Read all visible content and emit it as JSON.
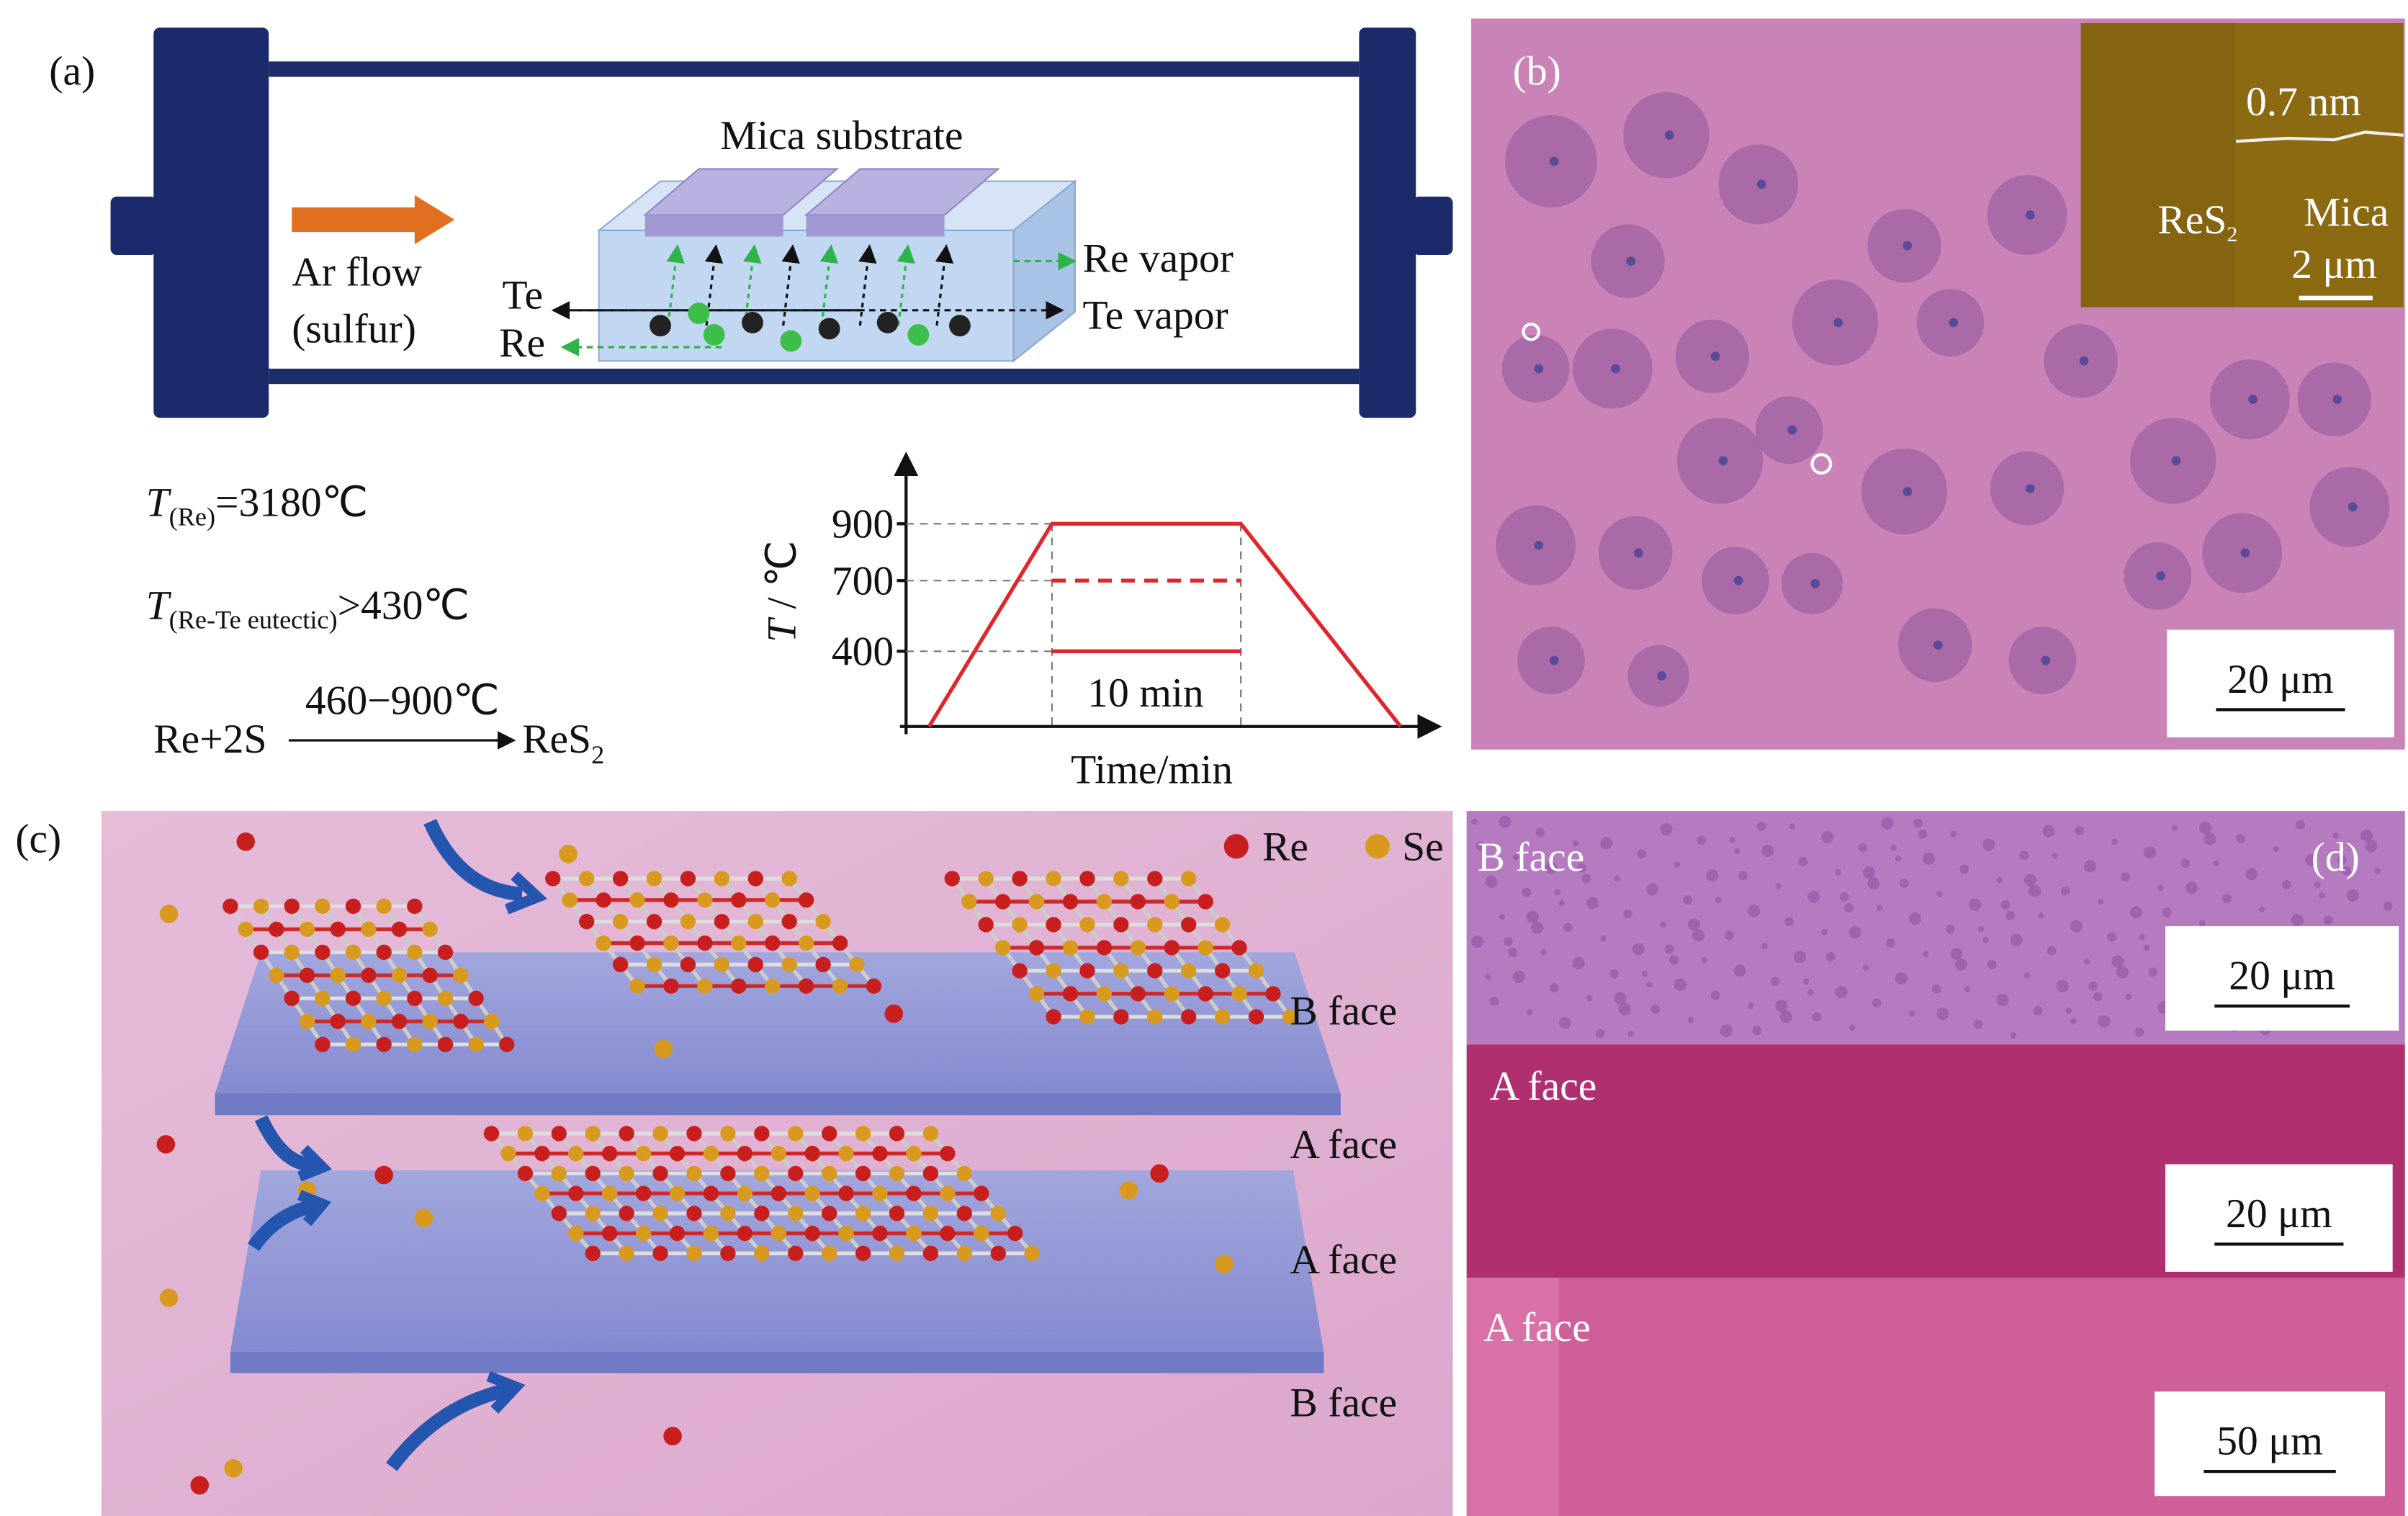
{
  "panel_a": {
    "label": "(a)",
    "substrate": "Mica substrate",
    "flow": [
      "Ar flow",
      "(sulfur)"
    ],
    "te": "Te",
    "re": "Re",
    "re_vapor": "Re vapor",
    "te_vapor": "Te vapor",
    "eq1": {
      "var": "T",
      "sub": "(Re)",
      "rest": "=3180℃"
    },
    "eq2": {
      "var": "T",
      "sub": "(Re-Te eutectic)",
      "rest": ">430℃"
    },
    "reaction": {
      "left": "Re+2S",
      "condition": "460−900℃",
      "right": "ReS",
      "right_sub": "2"
    },
    "graph": {
      "y_var": "T",
      "y_unit": " / ℃",
      "ticks": [
        "900",
        "700",
        "400"
      ],
      "hold": "10 min",
      "x_label": "Time/min"
    }
  },
  "panel_b": {
    "label": "(b)",
    "inset": {
      "height": "0.7 nm",
      "res": "ReS",
      "res_sub": "2",
      "mica": "Mica",
      "scale": "2 μm"
    },
    "scale": "20 μm"
  },
  "panel_c": {
    "label": "(c)",
    "legend": [
      "Re",
      "Se"
    ],
    "faces": [
      "B face",
      "A face",
      "A face",
      "B face"
    ]
  },
  "panel_d": {
    "label": "(d)",
    "bands": [
      {
        "face": "B face",
        "scale": "20 μm"
      },
      {
        "face": "A face",
        "scale": "20 μm"
      },
      {
        "face": "A face",
        "scale": "50 μm"
      }
    ]
  }
}
